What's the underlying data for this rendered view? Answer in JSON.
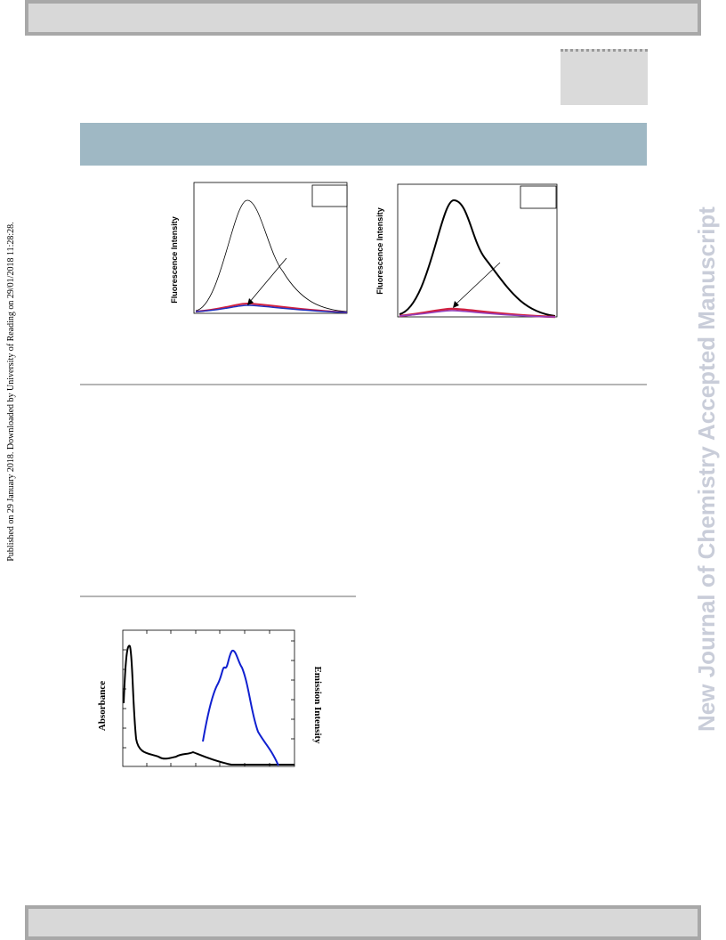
{
  "sidebar": {
    "published": "Published on 29 January 2018. Downloaded by University of Reading on 29/01/2018 11:28:28."
  },
  "watermark": "New Journal of Chemistry Accepted Manuscript",
  "figures": [
    {
      "y_label": "Fluorescence Intensity"
    },
    {
      "y_label": "Fluorescence Intensity"
    },
    {
      "y_label": "Absorbance",
      "y2_label": "Emission Intensity"
    }
  ]
}
